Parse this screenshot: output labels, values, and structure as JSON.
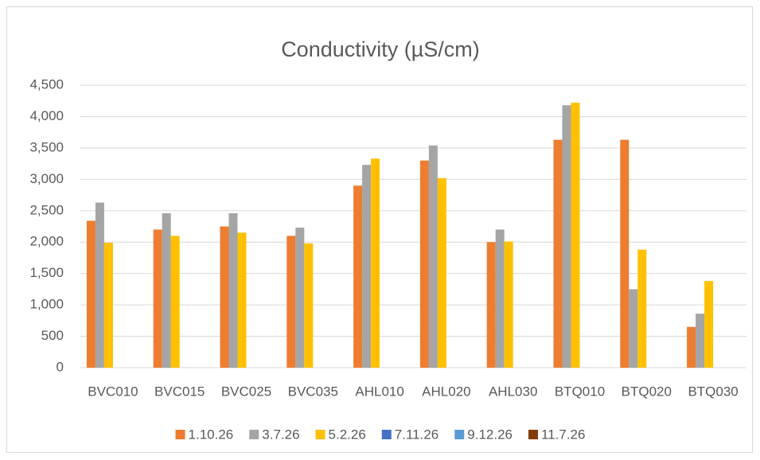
{
  "chart_data": {
    "type": "bar",
    "title": "Conductivity (µS/cm)",
    "categories": [
      "BVC010",
      "BVC015",
      "BVC025",
      "BVC035",
      "AHL010",
      "AHL020",
      "AHL030",
      "BTQ010",
      "BTQ020",
      "BTQ030"
    ],
    "series": [
      {
        "name": "1.10.26",
        "color": "#ED7D31",
        "values": [
          2340,
          2200,
          2250,
          2100,
          2900,
          3300,
          2000,
          3630,
          3630,
          650
        ]
      },
      {
        "name": "3.7.26",
        "color": "#A5A5A5",
        "values": [
          2630,
          2460,
          2460,
          2230,
          3230,
          3540,
          2200,
          4180,
          1250,
          860
        ]
      },
      {
        "name": "5.2.26",
        "color": "#FFC000",
        "values": [
          1990,
          2100,
          2150,
          1980,
          3330,
          3020,
          2010,
          4220,
          1880,
          1380
        ]
      },
      {
        "name": "7.11.26",
        "color": "#4472C4",
        "values": [
          null,
          null,
          null,
          null,
          null,
          null,
          null,
          null,
          null,
          null
        ]
      },
      {
        "name": "9.12.26",
        "color": "#5B9BD5",
        "values": [
          null,
          null,
          null,
          null,
          null,
          null,
          null,
          null,
          null,
          null
        ]
      },
      {
        "name": "11.7.26",
        "color": "#843C0C",
        "values": [
          null,
          null,
          null,
          null,
          null,
          null,
          null,
          null,
          null,
          null
        ]
      }
    ],
    "ylim": [
      0,
      4500
    ],
    "yticks": [
      0,
      500,
      {
        "value": 1000,
        "label": "1,000"
      },
      {
        "value": 1500,
        "label": "1,500"
      },
      {
        "value": 2000,
        "label": "2,000"
      },
      {
        "value": 2500,
        "label": "2,500"
      },
      {
        "value": 3000,
        "label": "3,000"
      },
      {
        "value": 3500,
        "label": "3,500"
      },
      {
        "value": 4000,
        "label": "4,000"
      },
      {
        "value": 4500,
        "label": "4,500"
      }
    ],
    "grid": true,
    "legend": "bottom"
  }
}
